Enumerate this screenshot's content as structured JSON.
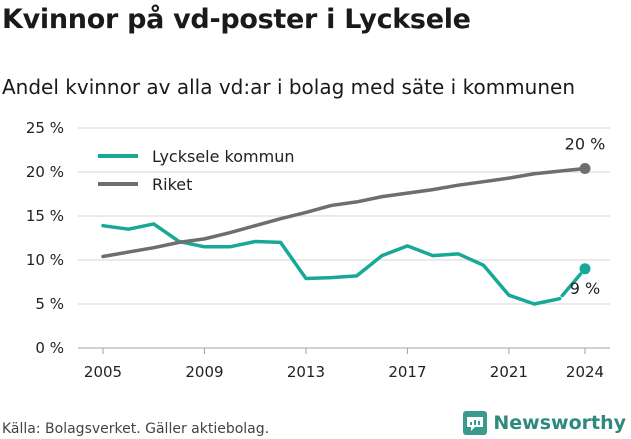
{
  "title": "Kvinnor på vd-poster i Lycksele",
  "subtitle": "Andel kvinnor av alla vd:ar i bolag med säte i kommunen",
  "footer": "Källa: Bolagsverket. Gäller aktiebolag.",
  "brand": {
    "name": "Newsworthy",
    "icon": "newsworthy-logo-icon"
  },
  "colors": {
    "lycksele": "#18a898",
    "riket": "#6e6e72",
    "grid": "#d4d4d4"
  },
  "chart_data": {
    "type": "line",
    "x": [
      2005,
      2006,
      2007,
      2008,
      2009,
      2010,
      2011,
      2012,
      2013,
      2014,
      2015,
      2016,
      2017,
      2018,
      2019,
      2020,
      2021,
      2022,
      2023,
      2024
    ],
    "series": [
      {
        "name": "Lycksele kommun",
        "values": [
          13.9,
          13.5,
          14.1,
          12.1,
          11.5,
          11.5,
          12.1,
          12.0,
          7.9,
          8.0,
          8.2,
          10.5,
          11.6,
          10.5,
          10.7,
          9.4,
          6.0,
          5.0,
          5.6,
          9.0
        ]
      },
      {
        "name": "Riket",
        "values": [
          10.4,
          10.9,
          11.4,
          12.0,
          12.4,
          13.1,
          13.9,
          14.7,
          15.4,
          16.2,
          16.6,
          17.2,
          17.6,
          18.0,
          18.5,
          18.9,
          19.3,
          19.8,
          20.1,
          20.4
        ]
      }
    ],
    "xticks": [
      "2005",
      "2009",
      "2013",
      "2017",
      "2021",
      "2024"
    ],
    "yticks": [
      "0 %",
      "5 %",
      "10 %",
      "15 %",
      "20 %",
      "25 %"
    ],
    "ylim": [
      0,
      25
    ],
    "end_labels": {
      "riket": "20 %",
      "lycksele": "9 %"
    },
    "grid": "horizontal",
    "legend_position": "top-left"
  }
}
